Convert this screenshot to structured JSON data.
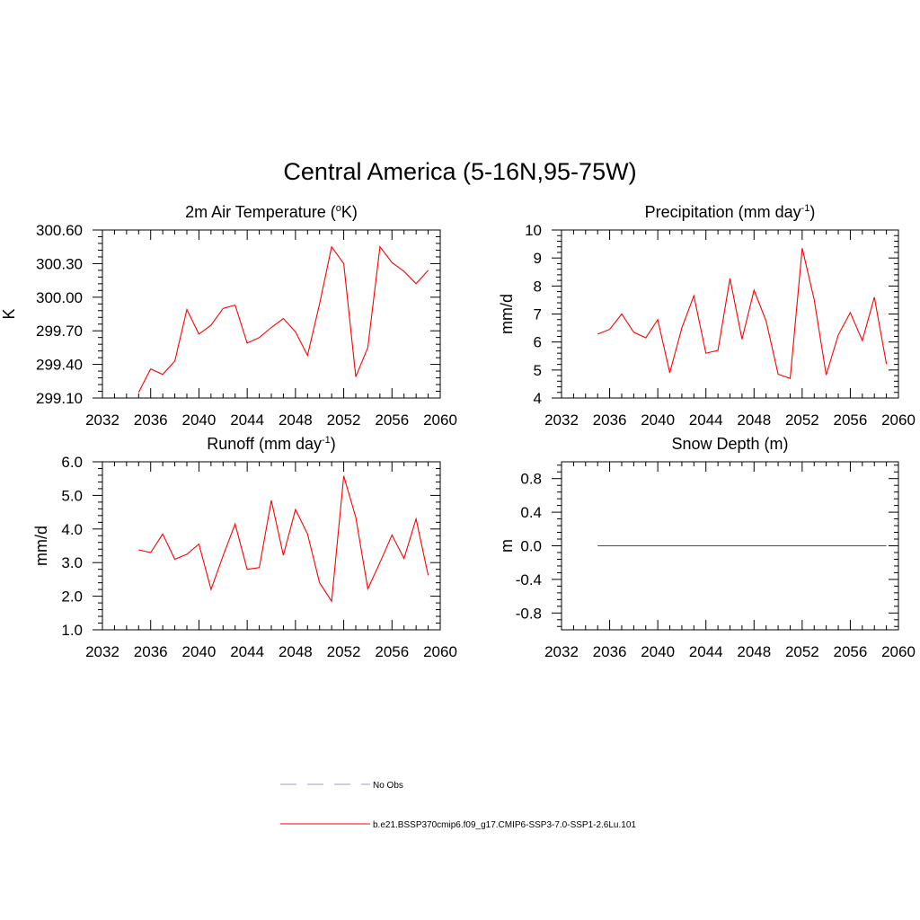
{
  "figure": {
    "title": "Central America (5-16N,95-75W)"
  },
  "colors": {
    "series": "#ff0000",
    "obs": "#9999dd",
    "axis": "#000000"
  },
  "legend": {
    "placement": "bottom-center",
    "items": [
      {
        "label": "No Obs",
        "style": "dashed",
        "color": "#9999dd"
      },
      {
        "label": "b.e21.BSSP370cmip6.f09_g17.CMIP6-SSP3-7.0-SSP1-2.6Lu.101",
        "style": "solid",
        "color": "#ff0000"
      }
    ]
  },
  "chart_data": [
    {
      "type": "line",
      "title_main": "2m Air Temperature (",
      "title_sup": "o",
      "title_end": "K)",
      "ylabel": "K",
      "xlabel": "",
      "xlim": [
        2032,
        2060
      ],
      "ylim": [
        299.1,
        300.6
      ],
      "xticks": [
        2032,
        2036,
        2040,
        2044,
        2048,
        2052,
        2056,
        2060
      ],
      "yticks": [
        299.1,
        299.4,
        299.7,
        300.0,
        300.3,
        300.6
      ],
      "ytick_labels": [
        "299.10",
        "299.40",
        "299.70",
        "300.00",
        "300.30",
        "300.60"
      ],
      "grid": false,
      "series": [
        {
          "x": [
            2035,
            2036,
            2037,
            2038,
            2039,
            2040,
            2041,
            2042,
            2043,
            2044,
            2045,
            2046,
            2047,
            2048,
            2049,
            2050,
            2051,
            2052,
            2053,
            2054,
            2055,
            2056,
            2057,
            2058,
            2059
          ],
          "values": [
            299.15,
            299.36,
            299.31,
            299.43,
            299.89,
            299.67,
            299.75,
            299.9,
            299.93,
            299.59,
            299.64,
            299.73,
            299.81,
            299.69,
            299.48,
            299.94,
            300.45,
            300.3,
            299.29,
            299.55,
            300.45,
            300.31,
            300.23,
            300.12,
            300.24
          ]
        }
      ]
    },
    {
      "type": "line",
      "title_main": "Precipitation (mm day",
      "title_sup": "-1",
      "title_end": ")",
      "ylabel": "mm/d",
      "xlabel": "",
      "xlim": [
        2032,
        2060
      ],
      "ylim": [
        4,
        10
      ],
      "xticks": [
        2032,
        2036,
        2040,
        2044,
        2048,
        2052,
        2056,
        2060
      ],
      "yticks": [
        4,
        5,
        6,
        7,
        8,
        9,
        10
      ],
      "ytick_labels": [
        "4",
        "5",
        "6",
        "7",
        "8",
        "9",
        "10"
      ],
      "grid": false,
      "series": [
        {
          "x": [
            2035,
            2036,
            2037,
            2038,
            2039,
            2040,
            2041,
            2042,
            2043,
            2044,
            2045,
            2046,
            2047,
            2048,
            2049,
            2050,
            2051,
            2052,
            2053,
            2054,
            2055,
            2056,
            2057,
            2058,
            2059
          ],
          "values": [
            6.28,
            6.45,
            7.0,
            6.35,
            6.15,
            6.8,
            4.9,
            6.5,
            7.65,
            5.6,
            5.7,
            8.27,
            6.1,
            7.85,
            6.75,
            4.85,
            4.7,
            9.35,
            7.5,
            4.82,
            6.25,
            7.05,
            6.05,
            7.6,
            5.22
          ]
        }
      ]
    },
    {
      "type": "line",
      "title_main": "Runoff (mm day",
      "title_sup": "-1",
      "title_end": ")",
      "ylabel": "mm/d",
      "xlabel": "",
      "xlim": [
        2032,
        2060
      ],
      "ylim": [
        1.0,
        6.0
      ],
      "xticks": [
        2032,
        2036,
        2040,
        2044,
        2048,
        2052,
        2056,
        2060
      ],
      "yticks": [
        1.0,
        2.0,
        3.0,
        4.0,
        5.0,
        6.0
      ],
      "ytick_labels": [
        "1.0",
        "2.0",
        "3.0",
        "4.0",
        "5.0",
        "6.0"
      ],
      "grid": false,
      "series": [
        {
          "x": [
            2035,
            2036,
            2037,
            2038,
            2039,
            2040,
            2041,
            2042,
            2043,
            2044,
            2045,
            2046,
            2047,
            2048,
            2049,
            2050,
            2051,
            2052,
            2053,
            2054,
            2055,
            2056,
            2057,
            2058,
            2059
          ],
          "values": [
            3.38,
            3.3,
            3.85,
            3.1,
            3.25,
            3.55,
            2.2,
            3.2,
            4.15,
            2.8,
            2.85,
            4.85,
            3.22,
            4.58,
            3.85,
            2.4,
            1.85,
            5.58,
            4.35,
            2.22,
            3.0,
            3.82,
            3.12,
            4.3,
            2.62
          ]
        }
      ]
    },
    {
      "type": "line",
      "title_main": "Snow Depth (m)",
      "title_sup": "",
      "title_end": "",
      "ylabel": "m",
      "xlabel": "",
      "xlim": [
        2032,
        2060
      ],
      "ylim": [
        -1.0,
        1.0
      ],
      "xticks": [
        2032,
        2036,
        2040,
        2044,
        2048,
        2052,
        2056,
        2060
      ],
      "yticks": [
        -0.8,
        -0.4,
        0.0,
        0.4,
        0.8
      ],
      "ytick_labels": [
        "-0.8",
        "-0.4",
        "0.0",
        "0.4",
        "0.8"
      ],
      "grid": false,
      "series": [
        {
          "x": [
            2035,
            2036,
            2037,
            2038,
            2039,
            2040,
            2041,
            2042,
            2043,
            2044,
            2045,
            2046,
            2047,
            2048,
            2049,
            2050,
            2051,
            2052,
            2053,
            2054,
            2055,
            2056,
            2057,
            2058,
            2059
          ],
          "values": [
            0,
            0,
            0,
            0,
            0,
            0,
            0,
            0,
            0,
            0,
            0,
            0,
            0,
            0,
            0,
            0,
            0,
            0,
            0,
            0,
            0,
            0,
            0,
            0,
            0
          ]
        }
      ]
    }
  ]
}
